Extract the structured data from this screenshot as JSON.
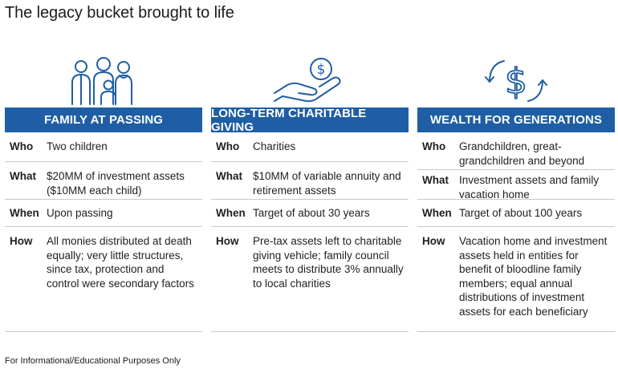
{
  "title": "The legacy bucket brought to life",
  "columns": [
    {
      "icon": "family-icon",
      "header": "FAMILY AT PASSING",
      "rows": [
        {
          "label": "Who",
          "value": "Two children"
        },
        {
          "label": "What",
          "value": "$20MM of investment assets ($10MM each child)"
        },
        {
          "label": "When",
          "value": "Upon passing"
        },
        {
          "label": "How",
          "value": "All monies distributed at death equally; very little structures, since tax, protection and control were secondary factors"
        }
      ]
    },
    {
      "icon": "hand-coin-icon",
      "header": "LONG-TERM CHARITABLE GIVING",
      "rows": [
        {
          "label": "Who",
          "value": "Charities"
        },
        {
          "label": "What",
          "value": "$10MM of variable annuity and retirement assets"
        },
        {
          "label": "When",
          "value": "Target of about 30 years"
        },
        {
          "label": "How",
          "value": "Pre-tax assets left to charitable giving vehicle; family council meets to distribute 3% annually to local charities"
        }
      ]
    },
    {
      "icon": "dollar-cycle-icon",
      "header": "WEALTH FOR GENERATIONS",
      "rows": [
        {
          "label": "Who",
          "value": "Grandchildren, great-grandchildren and beyond"
        },
        {
          "label": "What",
          "value": "Investment assets and family vacation home"
        },
        {
          "label": "When",
          "value": "Target of about 100 years"
        },
        {
          "label": "How",
          "value": "Vacation home and investment assets held in entities for benefit of bloodline family members; equal annual distributions of investment assets for each beneficiary"
        }
      ]
    }
  ],
  "footer": "For Informational/Educational Purposes Only",
  "colors": {
    "accent": "#1f5ea5",
    "icon_stroke": "#1f5ea5",
    "divider": "#c8c8c8"
  }
}
